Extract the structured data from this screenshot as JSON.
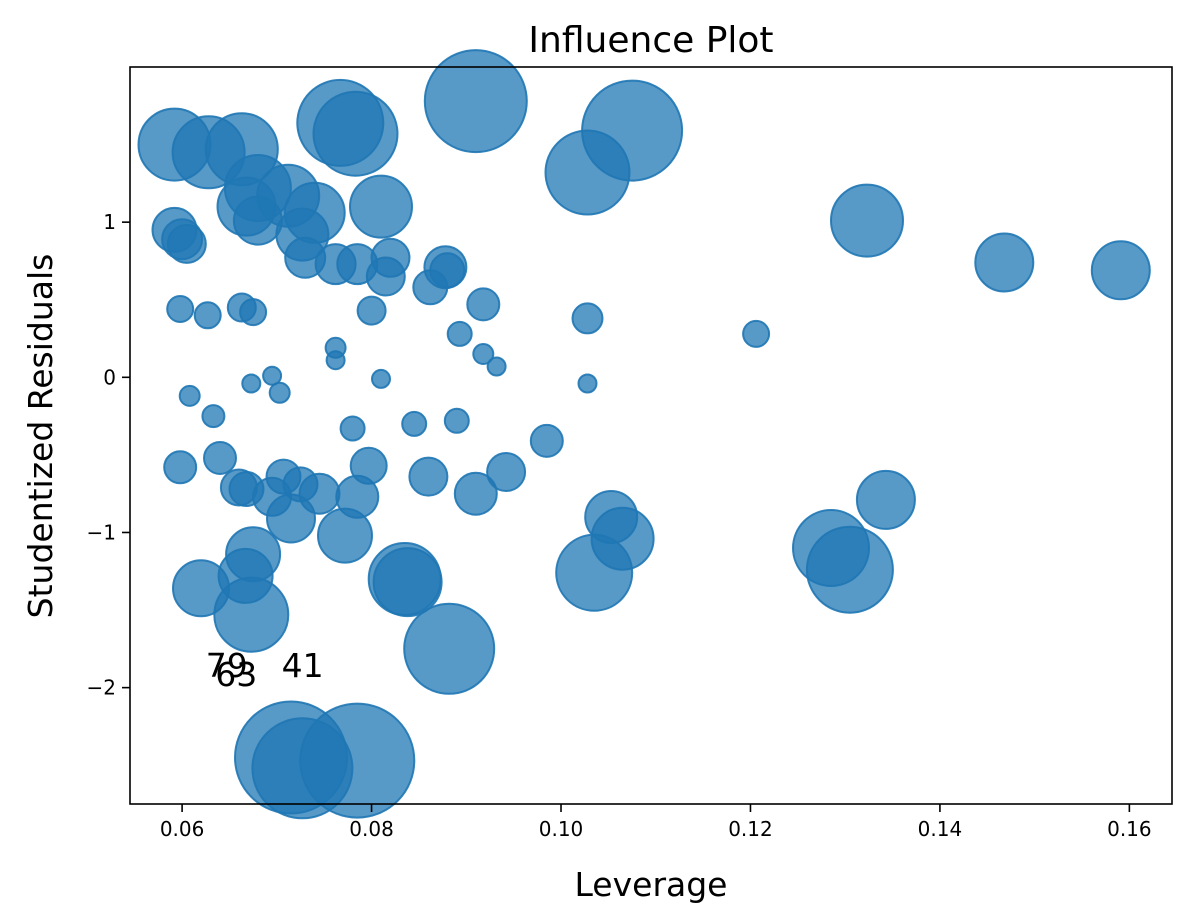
{
  "chart_data": {
    "type": "scatter",
    "title": "Influence Plot",
    "xlabel": "Leverage",
    "ylabel": "Studentized Residuals",
    "xlim": [
      0.0545,
      0.1645
    ],
    "ylim": [
      -2.75,
      2.0
    ],
    "xticks": [
      0.06,
      0.08,
      0.1,
      0.12,
      0.14,
      0.16
    ],
    "xtick_labels": [
      "0.06",
      "0.08",
      "0.10",
      "0.12",
      "0.14",
      "0.16"
    ],
    "yticks": [
      -2,
      -1,
      0,
      1
    ],
    "ytick_labels": [
      "−2",
      "−1",
      "0",
      "1"
    ],
    "grid": false,
    "marker_color": "#1f77b4",
    "marker_alpha": 0.75,
    "size_encoding": "Cook's distance (bubble area)",
    "points": [
      {
        "x": 0.0592,
        "y": 1.5,
        "s": 36
      },
      {
        "x": 0.0628,
        "y": 1.45,
        "s": 36
      },
      {
        "x": 0.0663,
        "y": 1.47,
        "s": 36
      },
      {
        "x": 0.0767,
        "y": 1.64,
        "s": 43
      },
      {
        "x": 0.0783,
        "y": 1.57,
        "s": 42
      },
      {
        "x": 0.091,
        "y": 1.78,
        "s": 51
      },
      {
        "x": 0.1075,
        "y": 1.59,
        "s": 50
      },
      {
        "x": 0.1028,
        "y": 1.32,
        "s": 42
      },
      {
        "x": 0.068,
        "y": 1.22,
        "s": 33
      },
      {
        "x": 0.0712,
        "y": 1.17,
        "s": 31
      },
      {
        "x": 0.0668,
        "y": 1.1,
        "s": 29
      },
      {
        "x": 0.068,
        "y": 1.01,
        "s": 24
      },
      {
        "x": 0.074,
        "y": 1.06,
        "s": 30
      },
      {
        "x": 0.0727,
        "y": 0.92,
        "s": 26
      },
      {
        "x": 0.081,
        "y": 1.1,
        "s": 31
      },
      {
        "x": 0.1323,
        "y": 1.01,
        "s": 36
      },
      {
        "x": 0.0592,
        "y": 0.95,
        "s": 22
      },
      {
        "x": 0.06,
        "y": 0.89,
        "s": 20
      },
      {
        "x": 0.0605,
        "y": 0.86,
        "s": 19
      },
      {
        "x": 0.073,
        "y": 0.77,
        "s": 20
      },
      {
        "x": 0.0762,
        "y": 0.73,
        "s": 20
      },
      {
        "x": 0.0785,
        "y": 0.73,
        "s": 20
      },
      {
        "x": 0.082,
        "y": 0.77,
        "s": 19
      },
      {
        "x": 0.0815,
        "y": 0.65,
        "s": 19
      },
      {
        "x": 0.0878,
        "y": 0.71,
        "s": 21
      },
      {
        "x": 0.088,
        "y": 0.69,
        "s": 17
      },
      {
        "x": 0.0862,
        "y": 0.58,
        "s": 17
      },
      {
        "x": 0.0918,
        "y": 0.47,
        "s": 16
      },
      {
        "x": 0.1468,
        "y": 0.74,
        "s": 29
      },
      {
        "x": 0.1591,
        "y": 0.69,
        "s": 29
      },
      {
        "x": 0.0598,
        "y": 0.44,
        "s": 13
      },
      {
        "x": 0.0627,
        "y": 0.4,
        "s": 13
      },
      {
        "x": 0.0663,
        "y": 0.45,
        "s": 14
      },
      {
        "x": 0.0675,
        "y": 0.42,
        "s": 13
      },
      {
        "x": 0.08,
        "y": 0.43,
        "s": 14
      },
      {
        "x": 0.0893,
        "y": 0.28,
        "s": 12
      },
      {
        "x": 0.1028,
        "y": 0.38,
        "s": 15
      },
      {
        "x": 0.1206,
        "y": 0.28,
        "s": 13
      },
      {
        "x": 0.0762,
        "y": 0.19,
        "s": 10
      },
      {
        "x": 0.0762,
        "y": 0.11,
        "s": 9
      },
      {
        "x": 0.0918,
        "y": 0.15,
        "s": 10
      },
      {
        "x": 0.0932,
        "y": 0.07,
        "s": 9
      },
      {
        "x": 0.0695,
        "y": 0.01,
        "s": 9
      },
      {
        "x": 0.0673,
        "y": -0.04,
        "s": 9
      },
      {
        "x": 0.0703,
        "y": -0.1,
        "s": 10
      },
      {
        "x": 0.081,
        "y": -0.01,
        "s": 9
      },
      {
        "x": 0.1028,
        "y": -0.04,
        "s": 9
      },
      {
        "x": 0.0608,
        "y": -0.12,
        "s": 10
      },
      {
        "x": 0.0633,
        "y": -0.25,
        "s": 11
      },
      {
        "x": 0.078,
        "y": -0.33,
        "s": 12
      },
      {
        "x": 0.0845,
        "y": -0.3,
        "s": 12
      },
      {
        "x": 0.089,
        "y": -0.28,
        "s": 12
      },
      {
        "x": 0.0598,
        "y": -0.58,
        "s": 16
      },
      {
        "x": 0.064,
        "y": -0.52,
        "s": 16
      },
      {
        "x": 0.0985,
        "y": -0.41,
        "s": 16
      },
      {
        "x": 0.0797,
        "y": -0.57,
        "s": 18
      },
      {
        "x": 0.086,
        "y": -0.64,
        "s": 19
      },
      {
        "x": 0.0942,
        "y": -0.61,
        "s": 19
      },
      {
        "x": 0.066,
        "y": -0.71,
        "s": 18
      },
      {
        "x": 0.0668,
        "y": -0.72,
        "s": 17
      },
      {
        "x": 0.0707,
        "y": -0.64,
        "s": 17
      },
      {
        "x": 0.0725,
        "y": -0.69,
        "s": 17
      },
      {
        "x": 0.0695,
        "y": -0.77,
        "s": 19
      },
      {
        "x": 0.0745,
        "y": -0.75,
        "s": 20
      },
      {
        "x": 0.0785,
        "y": -0.77,
        "s": 21
      },
      {
        "x": 0.091,
        "y": -0.75,
        "s": 21
      },
      {
        "x": 0.0715,
        "y": -0.91,
        "s": 24
      },
      {
        "x": 0.1053,
        "y": -0.9,
        "s": 26
      },
      {
        "x": 0.1343,
        "y": -0.79,
        "s": 29
      },
      {
        "x": 0.0772,
        "y": -1.02,
        "s": 27
      },
      {
        "x": 0.1065,
        "y": -1.04,
        "s": 31
      },
      {
        "x": 0.0675,
        "y": -1.14,
        "s": 27
      },
      {
        "x": 0.0667,
        "y": -1.28,
        "s": 27
      },
      {
        "x": 0.062,
        "y": -1.36,
        "s": 28
      },
      {
        "x": 0.0835,
        "y": -1.3,
        "s": 36
      },
      {
        "x": 0.0838,
        "y": -1.32,
        "s": 34
      },
      {
        "x": 0.1035,
        "y": -1.26,
        "s": 38
      },
      {
        "x": 0.1285,
        "y": -1.1,
        "s": 38
      },
      {
        "x": 0.1305,
        "y": -1.24,
        "s": 43
      },
      {
        "x": 0.0673,
        "y": -1.53,
        "s": 37
      },
      {
        "x": 0.0882,
        "y": -1.75,
        "s": 45
      },
      {
        "x": 0.0715,
        "y": -2.45,
        "s": 56
      },
      {
        "x": 0.0727,
        "y": -2.52,
        "s": 50
      },
      {
        "x": 0.0785,
        "y": -2.47,
        "s": 57
      }
    ],
    "annotations": [
      {
        "text": "79",
        "x": 0.0625,
        "y": -1.93
      },
      {
        "text": "41",
        "x": 0.0705,
        "y": -1.93
      },
      {
        "text": "63",
        "x": 0.0635,
        "y": -1.99
      }
    ]
  }
}
